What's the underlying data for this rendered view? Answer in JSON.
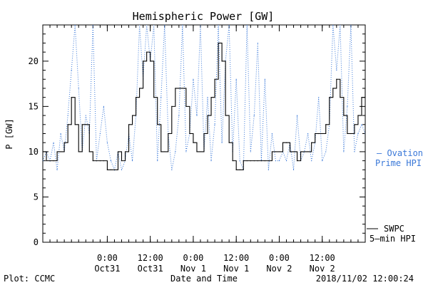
{
  "colors": {
    "ovation": "#3a78d8",
    "swpc": "#000000",
    "frame": "#000000"
  },
  "chart_data": {
    "type": "line",
    "title": "Hemispheric Power [GW]",
    "ylabel": "P [GW]",
    "xlabel": "Date and Time",
    "ylim": [
      0,
      24
    ],
    "xlim_hours": [
      -9,
      36
    ],
    "grid": false,
    "y_ticks": [
      "0",
      "5",
      "10",
      "15",
      "20"
    ],
    "x_ticks": [
      {
        "hour": 0,
        "time": "0:00",
        "date": "Oct31"
      },
      {
        "hour": 6,
        "time": "12:00",
        "date": "Oct31"
      },
      {
        "hour": 12,
        "time": "0:00",
        "date": "Nov 1"
      },
      {
        "hour": 18,
        "time": "12:00",
        "date": "Nov 1"
      },
      {
        "hour": 24,
        "time": "0:00",
        "date": "Nov 2"
      },
      {
        "hour": 30,
        "time": "12:00",
        "date": "Nov 2"
      }
    ],
    "legend_position": "right",
    "series": [
      {
        "key": "ovation",
        "name_lines": [
          "– Ovation",
          "Prime HPI"
        ],
        "style": "dotted",
        "x": [
          -9.0,
          -8.5,
          -8.0,
          -7.5,
          -7.0,
          -6.5,
          -6.0,
          -5.5,
          -5.0,
          -4.5,
          -4.0,
          -3.5,
          -3.0,
          -2.5,
          -2.0,
          -1.5,
          -1.0,
          -0.5,
          0.0,
          0.5,
          1.0,
          1.5,
          2.0,
          2.5,
          3.0,
          3.5,
          4.0,
          4.5,
          5.0,
          5.5,
          6.0,
          6.5,
          7.0,
          7.5,
          8.0,
          8.5,
          9.0,
          9.5,
          10.0,
          10.5,
          11.0,
          11.5,
          12.0,
          12.5,
          13.0,
          13.5,
          14.0,
          14.5,
          15.0,
          15.5,
          16.0,
          16.5,
          17.0,
          17.5,
          18.0,
          18.5,
          19.0,
          19.5,
          20.0,
          20.5,
          21.0,
          21.5,
          22.0,
          22.5,
          23.0,
          23.5,
          24.0,
          24.5,
          25.0,
          25.5,
          26.0,
          26.5,
          27.0,
          27.5,
          28.0,
          28.5,
          29.0,
          29.5,
          30.0,
          30.5,
          31.0,
          31.5,
          32.0,
          32.5,
          33.0,
          33.5,
          34.0,
          34.5,
          35.0,
          35.5,
          36.0
        ],
        "values": [
          9,
          10,
          9,
          11,
          8,
          12,
          10,
          14,
          19,
          24,
          17,
          10,
          14,
          12,
          24,
          9,
          12,
          15,
          11,
          9,
          8,
          10,
          8,
          9,
          12,
          9,
          14,
          24,
          18,
          24,
          20,
          24,
          9,
          16,
          24,
          12,
          8,
          10,
          14,
          24,
          10,
          12,
          18,
          14,
          24,
          10,
          16,
          9,
          13,
          24,
          11,
          20,
          24,
          10,
          18,
          9,
          8,
          24,
          10,
          14,
          22,
          9,
          18,
          8,
          12,
          9,
          9,
          10,
          9,
          11,
          8,
          14,
          9,
          10,
          12,
          9,
          11,
          16,
          9,
          10,
          13,
          24,
          19,
          24,
          10,
          15,
          24,
          10,
          12,
          13,
          12
        ]
      },
      {
        "key": "swpc",
        "name_lines": [
          "SWPC",
          "5–min HPI"
        ],
        "style": "solid",
        "x": [
          -9.0,
          -8.5,
          -8.0,
          -7.5,
          -7.0,
          -6.5,
          -6.0,
          -5.5,
          -5.0,
          -4.5,
          -4.0,
          -3.5,
          -3.0,
          -2.5,
          -2.0,
          -1.5,
          -1.0,
          -0.5,
          0.0,
          0.5,
          1.0,
          1.5,
          2.0,
          2.5,
          3.0,
          3.5,
          4.0,
          4.5,
          5.0,
          5.5,
          6.0,
          6.5,
          7.0,
          7.5,
          8.0,
          8.5,
          9.0,
          9.5,
          10.0,
          10.5,
          11.0,
          11.5,
          12.0,
          12.5,
          13.0,
          13.5,
          14.0,
          14.5,
          15.0,
          15.5,
          16.0,
          16.5,
          17.0,
          17.5,
          18.0,
          18.5,
          19.0,
          19.5,
          20.0,
          20.5,
          21.0,
          21.5,
          22.0,
          22.5,
          23.0,
          23.5,
          24.0,
          24.5,
          25.0,
          25.5,
          26.0,
          26.5,
          27.0,
          27.5,
          28.0,
          28.5,
          29.0,
          29.5,
          30.0,
          30.5,
          31.0,
          31.5,
          32.0,
          32.5,
          33.0,
          33.5,
          34.0,
          34.5,
          35.0,
          35.5,
          36.0
        ],
        "values": [
          10,
          9,
          9,
          9,
          10,
          10,
          11,
          13,
          16,
          13,
          10,
          13,
          13,
          10,
          9,
          9,
          9,
          9,
          8,
          8,
          8,
          10,
          9,
          10,
          13,
          14,
          16,
          17,
          20,
          21,
          20,
          16,
          13,
          10,
          10,
          12,
          15,
          17,
          17,
          17,
          15,
          12,
          11,
          10,
          10,
          12,
          14,
          16,
          18,
          22,
          20,
          14,
          11,
          9,
          8,
          8,
          9,
          9,
          9,
          9,
          9,
          9,
          9,
          9,
          10,
          10,
          10,
          11,
          11,
          10,
          10,
          9,
          10,
          10,
          10,
          11,
          12,
          12,
          12,
          13,
          16,
          17,
          18,
          16,
          14,
          12,
          12,
          13,
          14,
          16,
          17
        ]
      }
    ]
  },
  "footer": {
    "left": "Plot: CCMC",
    "center": "Date and Time",
    "right": "2018/11/02 12:00:24"
  }
}
